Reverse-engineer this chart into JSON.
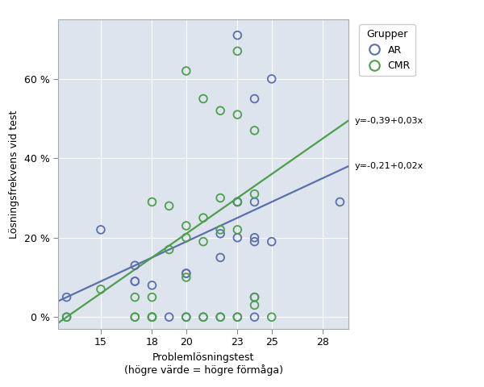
{
  "title": "",
  "xlabel": "Problemlösningstest\n(högre värde = högre förmåga)",
  "ylabel": "Lösningsfrekvens vid test",
  "xlim": [
    12.5,
    29.5
  ],
  "ylim": [
    -0.03,
    0.75
  ],
  "xticks": [
    15,
    18,
    20,
    23,
    25,
    28
  ],
  "yticks": [
    0.0,
    0.2,
    0.4,
    0.6
  ],
  "ytick_labels": [
    "0 %",
    "20 %",
    "40 %",
    "60 %"
  ],
  "plot_bg_color": "#dde4ee",
  "fig_bg_color": "#f5f5f5",
  "ar_color": "#5b6faa",
  "cmr_color": "#4d9e4d",
  "ar_points": [
    [
      13,
      0.05
    ],
    [
      13,
      0.0
    ],
    [
      15,
      0.22
    ],
    [
      17,
      0.13
    ],
    [
      17,
      0.09
    ],
    [
      17,
      0.09
    ],
    [
      18,
      0.08
    ],
    [
      18,
      0.0
    ],
    [
      19,
      0.0
    ],
    [
      20,
      0.11
    ],
    [
      20,
      0.11
    ],
    [
      20,
      0.0
    ],
    [
      21,
      0.0
    ],
    [
      22,
      0.21
    ],
    [
      22,
      0.15
    ],
    [
      22,
      0.0
    ],
    [
      23,
      0.71
    ],
    [
      23,
      0.29
    ],
    [
      23,
      0.29
    ],
    [
      23,
      0.2
    ],
    [
      23,
      0.0
    ],
    [
      24,
      0.55
    ],
    [
      24,
      0.29
    ],
    [
      24,
      0.2
    ],
    [
      24,
      0.19
    ],
    [
      24,
      0.05
    ],
    [
      24,
      0.0
    ],
    [
      25,
      0.6
    ],
    [
      25,
      0.19
    ],
    [
      29,
      0.29
    ]
  ],
  "cmr_points": [
    [
      13,
      0.0
    ],
    [
      15,
      0.07
    ],
    [
      17,
      0.05
    ],
    [
      17,
      0.0
    ],
    [
      17,
      0.0
    ],
    [
      18,
      0.29
    ],
    [
      18,
      0.05
    ],
    [
      18,
      0.0
    ],
    [
      18,
      0.0
    ],
    [
      19,
      0.28
    ],
    [
      19,
      0.17
    ],
    [
      20,
      0.62
    ],
    [
      20,
      0.23
    ],
    [
      20,
      0.2
    ],
    [
      20,
      0.1
    ],
    [
      20,
      0.0
    ],
    [
      21,
      0.55
    ],
    [
      21,
      0.25
    ],
    [
      21,
      0.19
    ],
    [
      21,
      0.0
    ],
    [
      22,
      0.52
    ],
    [
      22,
      0.3
    ],
    [
      22,
      0.22
    ],
    [
      22,
      0.0
    ],
    [
      23,
      0.67
    ],
    [
      23,
      0.51
    ],
    [
      23,
      0.29
    ],
    [
      23,
      0.22
    ],
    [
      23,
      0.0
    ],
    [
      24,
      0.47
    ],
    [
      24,
      0.31
    ],
    [
      24,
      0.05
    ],
    [
      24,
      0.03
    ],
    [
      25,
      0.0
    ]
  ],
  "ar_slope": 0.02,
  "ar_intercept": -0.21,
  "cmr_slope": 0.03,
  "cmr_intercept": -0.39,
  "legend_title": "Grupper",
  "legend_ar": "AR",
  "legend_cmr": "CMR",
  "eq_ar": "y=-0,21+0,02x",
  "eq_cmr": "y=-0,39+0,03x",
  "marker_size": 7,
  "line_width": 1.6,
  "x_line_end": 29.5
}
